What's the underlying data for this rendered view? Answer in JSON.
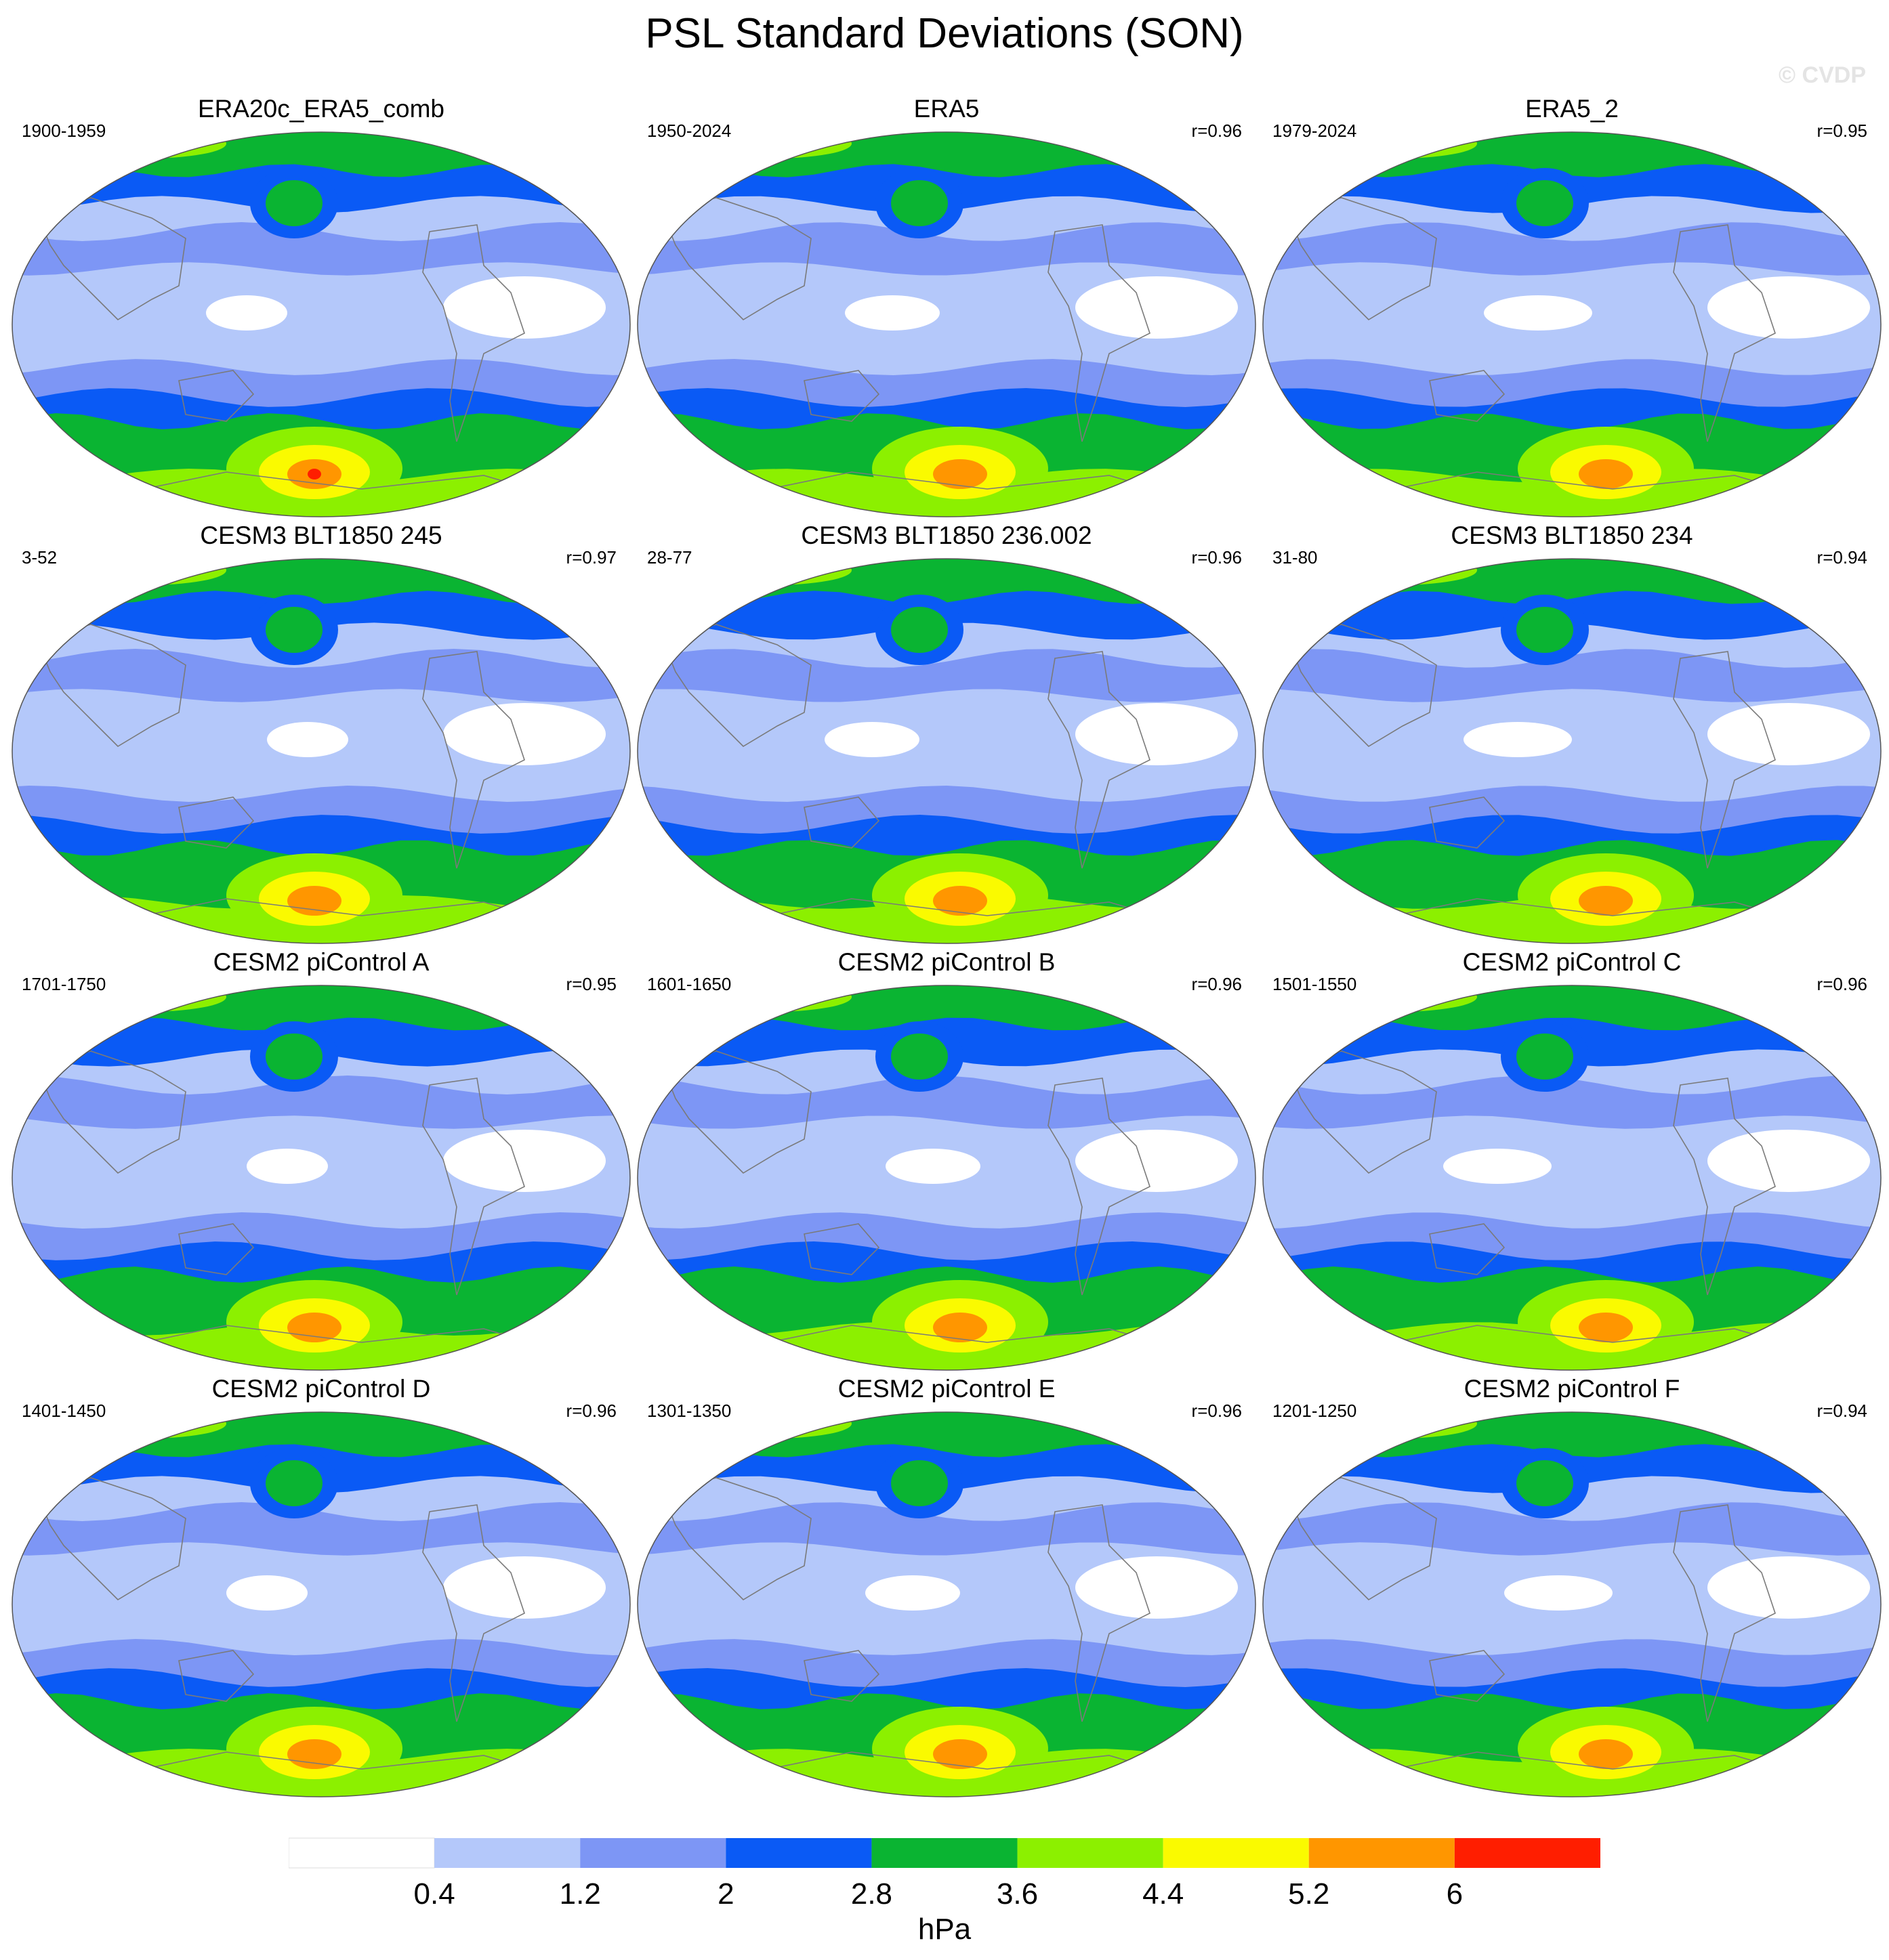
{
  "title": "PSL Standard Deviations (SON)",
  "watermark": "© CVDP",
  "colorbar": {
    "colors": [
      "#ffffff",
      "#b4c8fa",
      "#7d96f5",
      "#0a5af5",
      "#0ab432",
      "#8cf000",
      "#fafa00",
      "#ff9600",
      "#ff1e00"
    ],
    "levels": [
      "0.4",
      "1.2",
      "2",
      "2.8",
      "3.6",
      "4.4",
      "5.2",
      "6"
    ],
    "units": "hPa"
  },
  "panels": [
    {
      "title": "ERA20c_ERA5_comb",
      "period": "1900-1959",
      "corr": ""
    },
    {
      "title": "ERA5",
      "period": "1950-2024",
      "corr": "r=0.96"
    },
    {
      "title": "ERA5_2",
      "period": "1979-2024",
      "corr": "r=0.95"
    },
    {
      "title": "CESM3 BLT1850 245",
      "period": "3-52",
      "corr": "r=0.97"
    },
    {
      "title": "CESM3 BLT1850 236.002",
      "period": "28-77",
      "corr": "r=0.96"
    },
    {
      "title": "CESM3 BLT1850 234",
      "period": "31-80",
      "corr": "r=0.94"
    },
    {
      "title": "CESM2 piControl A",
      "period": "1701-1750",
      "corr": "r=0.95"
    },
    {
      "title": "CESM2 piControl B",
      "period": "1601-1650",
      "corr": "r=0.96"
    },
    {
      "title": "CESM2 piControl C",
      "period": "1501-1550",
      "corr": "r=0.96"
    },
    {
      "title": "CESM2 piControl D",
      "period": "1401-1450",
      "corr": "r=0.96"
    },
    {
      "title": "CESM2 piControl E",
      "period": "1301-1350",
      "corr": "r=0.96"
    },
    {
      "title": "CESM2 piControl F",
      "period": "1201-1250",
      "corr": "r=0.94"
    }
  ]
}
